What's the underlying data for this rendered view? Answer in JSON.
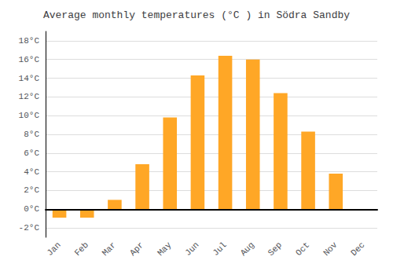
{
  "chart_data": {
    "type": "bar",
    "title": "Average monthly temperatures (°C ) in Södra Sandby",
    "categories": [
      "Jan",
      "Feb",
      "Mar",
      "Apr",
      "May",
      "Jun",
      "Jul",
      "Aug",
      "Sep",
      "Oct",
      "Nov",
      "Dec"
    ],
    "values": [
      -0.9,
      -0.9,
      1.0,
      4.8,
      9.8,
      14.3,
      16.4,
      16.0,
      12.4,
      8.3,
      3.8,
      0.0
    ],
    "color": "#FFA726",
    "ylim": [
      -3,
      19
    ],
    "yticks": [
      {
        "value": -2,
        "label": "-2°C"
      },
      {
        "value": 0,
        "label": "0°C"
      },
      {
        "value": 2,
        "label": "2°C"
      },
      {
        "value": 4,
        "label": "4°C"
      },
      {
        "value": 6,
        "label": "6°C"
      },
      {
        "value": 8,
        "label": "8°C"
      },
      {
        "value": 10,
        "label": "10°C"
      },
      {
        "value": 12,
        "label": "12°C"
      },
      {
        "value": 14,
        "label": "14°C"
      },
      {
        "value": 16,
        "label": "16°C"
      },
      {
        "value": 18,
        "label": "18°C"
      }
    ],
    "grid": true
  }
}
